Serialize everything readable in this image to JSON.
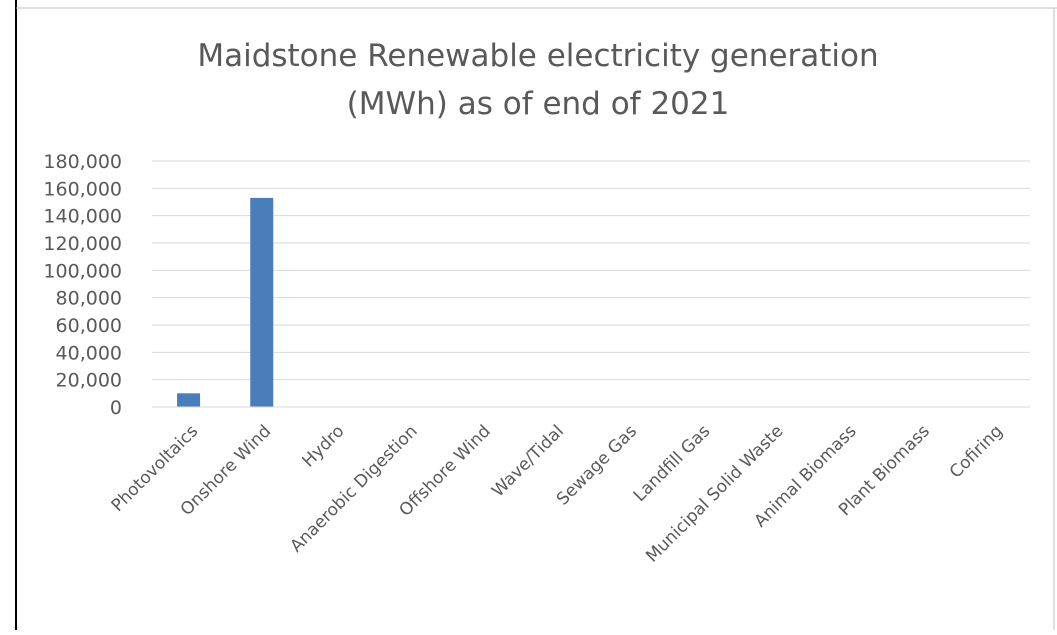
{
  "chart_data": {
    "type": "bar",
    "title_line1": "Maidstone Renewable electricity generation",
    "title_line2": "(MWh) as of end of 2021",
    "xlabel": "",
    "ylabel": "",
    "ylim": [
      0,
      180000
    ],
    "y_ticks": [
      "0",
      "20,000",
      "40,000",
      "60,000",
      "80,000",
      "100,000",
      "120,000",
      "140,000",
      "160,000",
      "180,000"
    ],
    "categories": [
      "Photovoltaics",
      "Onshore Wind",
      "Hydro",
      "Anaerobic Digestion",
      "Offshore Wind",
      "Wave/Tidal",
      "Sewage Gas",
      "Landfill Gas",
      "Municipal Solid Waste",
      "Animal Biomass",
      "Plant Biomass",
      "Cofiring"
    ],
    "values": [
      10000,
      153000,
      0,
      0,
      0,
      0,
      0,
      0,
      0,
      0,
      0,
      0
    ],
    "grid": true,
    "legend": "none",
    "bar_color": "#4a7ebb",
    "grid_color": "#d9d9d9",
    "text_color": "#595959"
  }
}
